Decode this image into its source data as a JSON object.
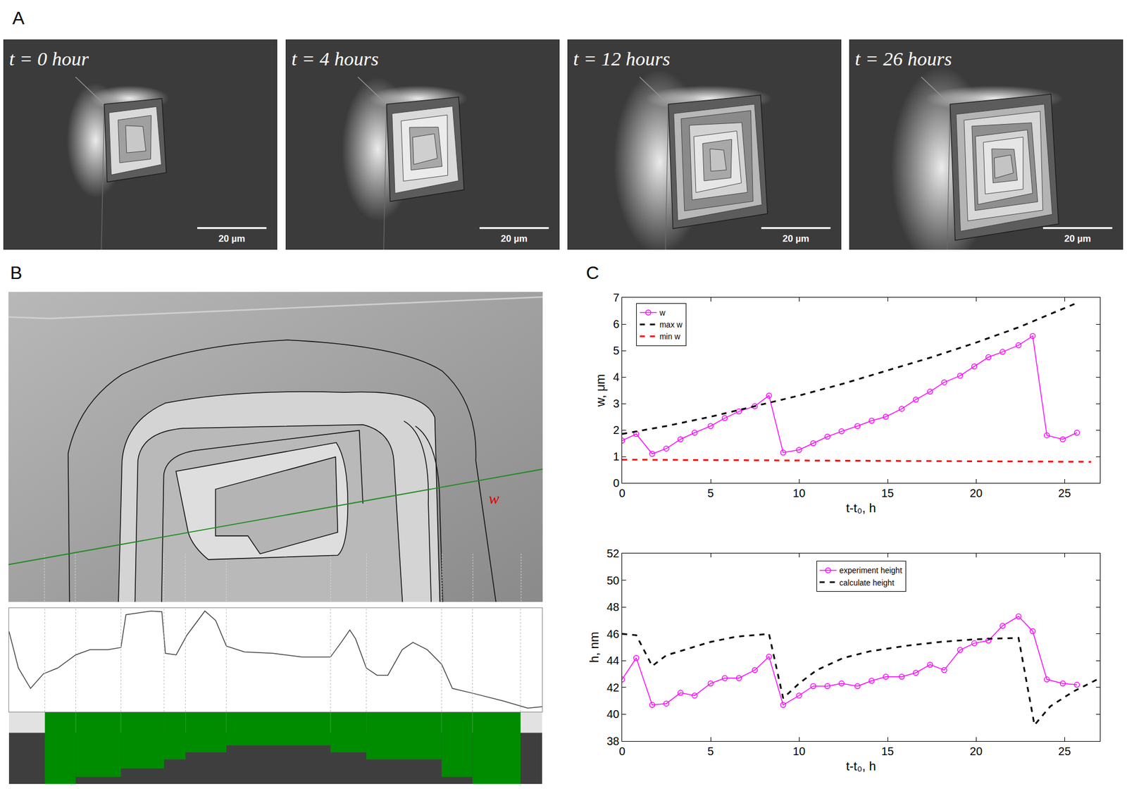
{
  "panel_labels": [
    "A",
    "B",
    "C"
  ],
  "panel_a": {
    "frames": [
      {
        "label": "t = 0 hour",
        "scale_bar": "20 µm"
      },
      {
        "label": "t = 4 hours",
        "scale_bar": "20 µm"
      },
      {
        "label": "t = 12 hours",
        "scale_bar": "20 µm"
      },
      {
        "label": "t = 26 hours",
        "scale_bar": "20 µm"
      }
    ]
  },
  "panel_b": {
    "image_label": "w"
  },
  "chart_data": [
    {
      "type": "line",
      "color": "#444444",
      "grid": false,
      "tick_labels": false,
      "xlim": [
        0,
        743
      ],
      "ylim": [
        0,
        142
      ],
      "x": [
        0,
        13,
        30,
        48,
        68,
        93,
        113,
        138,
        156,
        163,
        178,
        198,
        213,
        218,
        233,
        248,
        273,
        288,
        303,
        328,
        368,
        408,
        448,
        463,
        475,
        483,
        498,
        513,
        528,
        548,
        563,
        583,
        603,
        618,
        648,
        688,
        723,
        743
      ],
      "values": [
        110,
        60,
        32,
        52,
        60,
        78,
        85,
        85,
        88,
        133,
        135,
        138,
        137,
        80,
        78,
        105,
        138,
        125,
        90,
        82,
        80,
        75,
        75,
        95,
        112,
        100,
        60,
        50,
        50,
        85,
        95,
        85,
        65,
        32,
        25,
        15,
        5,
        7
      ]
    },
    {
      "type": "bar",
      "color": "#008c00",
      "grid": false,
      "tick_labels": false,
      "xlim": [
        0,
        743
      ],
      "ylim": [
        0,
        102
      ],
      "bins": [
        50,
        93,
        156,
        216,
        246,
        303,
        448,
        498,
        603,
        646,
        713
      ],
      "values": [
        102,
        92,
        80,
        67,
        57,
        47,
        57,
        67,
        92,
        102
      ]
    },
    {
      "type": "line",
      "xlabel": "t-t₀, h",
      "ylabel": "w, μm",
      "grid": false,
      "legend": "upper left",
      "xlim": [
        0,
        27
      ],
      "ylim": [
        0,
        7
      ],
      "xticks": [
        0,
        5,
        10,
        15,
        20,
        25
      ],
      "yticks": [
        0,
        1,
        2,
        3,
        4,
        5,
        6,
        7
      ],
      "series": [
        {
          "name": "w",
          "color": "#ff00ff",
          "marker": "circle-open",
          "line_style": "solid",
          "x": [
            0,
            0.8,
            1.7,
            2.5,
            3.3,
            4.1,
            5.0,
            5.8,
            6.6,
            7.5,
            8.3,
            9.1,
            10.0,
            10.8,
            11.6,
            12.4,
            13.3,
            14.1,
            14.9,
            15.8,
            16.6,
            17.4,
            18.2,
            19.1,
            19.9,
            20.7,
            21.5,
            22.4,
            23.2,
            24.0,
            24.9,
            25.7
          ],
          "values": [
            1.6,
            1.85,
            1.1,
            1.3,
            1.65,
            1.9,
            2.15,
            2.45,
            2.7,
            2.9,
            3.3,
            1.15,
            1.25,
            1.5,
            1.75,
            1.95,
            2.15,
            2.35,
            2.5,
            2.8,
            3.15,
            3.45,
            3.8,
            4.05,
            4.4,
            4.75,
            4.95,
            5.2,
            5.55,
            1.8,
            1.65,
            1.9
          ]
        },
        {
          "name": "max w",
          "color": "#000000",
          "line_style": "dashed",
          "x": [
            0,
            2.5,
            5,
            7.5,
            10,
            12.5,
            15,
            17.5,
            20,
            22.5,
            25.7
          ],
          "values": [
            1.85,
            2.15,
            2.5,
            2.9,
            3.3,
            3.75,
            4.25,
            4.75,
            5.3,
            5.9,
            6.8
          ]
        },
        {
          "name": "min w",
          "color": "#ff0000",
          "line_style": "dashed",
          "x": [
            0,
            26.5
          ],
          "values": [
            0.88,
            0.8
          ]
        }
      ]
    },
    {
      "type": "line",
      "xlabel": "t-t₀, h",
      "ylabel": "h, nm",
      "grid": false,
      "legend": "upper center",
      "xlim": [
        0,
        27
      ],
      "ylim": [
        38,
        52
      ],
      "xticks": [
        0,
        5,
        10,
        15,
        20,
        25
      ],
      "yticks": [
        38,
        40,
        42,
        44,
        46,
        48,
        50,
        52
      ],
      "series": [
        {
          "name": "experiment height",
          "color": "#ff00ff",
          "marker": "circle-open",
          "line_style": "solid",
          "x": [
            0,
            0.8,
            1.7,
            2.5,
            3.3,
            4.1,
            5.0,
            5.8,
            6.6,
            7.5,
            8.3,
            9.1,
            10.0,
            10.8,
            11.6,
            12.4,
            13.3,
            14.1,
            14.9,
            15.8,
            16.6,
            17.4,
            18.2,
            19.1,
            19.9,
            20.7,
            21.5,
            22.4,
            23.2,
            24.0,
            24.9,
            25.7
          ],
          "values": [
            42.6,
            44.2,
            40.7,
            40.8,
            41.6,
            41.4,
            42.3,
            42.7,
            42.7,
            43.3,
            44.3,
            40.7,
            41.4,
            42.1,
            42.1,
            42.3,
            42.1,
            42.5,
            42.8,
            42.8,
            43.1,
            43.7,
            43.3,
            44.8,
            45.3,
            45.5,
            46.6,
            47.3,
            46.2,
            42.6,
            42.3,
            42.2
          ]
        },
        {
          "name": "calculate height",
          "color": "#000000",
          "line_style": "dashed",
          "x": [
            0,
            0.8,
            1.7,
            2.5,
            4,
            5,
            6.5,
            8.3,
            9.1,
            10,
            11,
            12.5,
            14,
            16,
            18,
            20,
            22.4,
            23.3,
            24.2,
            25.5,
            27
          ],
          "values": [
            46,
            45.9,
            43.6,
            44.4,
            45,
            45.4,
            45.8,
            46,
            41.2,
            42.3,
            43.3,
            44.2,
            44.7,
            45.1,
            45.4,
            45.6,
            45.7,
            39.2,
            40.6,
            41.7,
            42.7
          ]
        }
      ]
    }
  ]
}
